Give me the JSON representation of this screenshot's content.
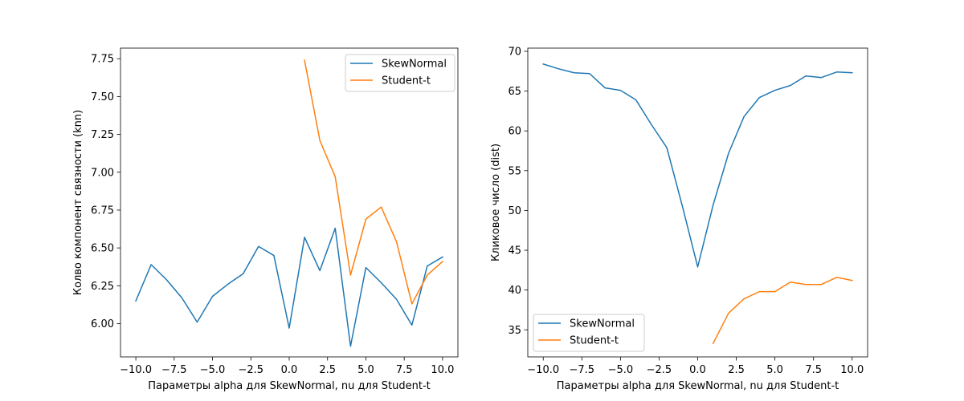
{
  "chart_data": [
    {
      "type": "line",
      "xlabel": "Параметры alpha для SkewNormal, nu для Student-t",
      "ylabel": "Колво компонент связности (knn)",
      "xlim": [
        -11,
        11
      ],
      "ylim": [
        5.78,
        7.82
      ],
      "x_ticks": [
        -10.0,
        -7.5,
        -5.0,
        -2.5,
        0.0,
        2.5,
        5.0,
        7.5,
        10.0
      ],
      "x_tick_labels": [
        "−10.0",
        "−7.5",
        "−5.0",
        "−2.5",
        "0.0",
        "2.5",
        "5.0",
        "7.5",
        "10.0"
      ],
      "y_ticks": [
        6.0,
        6.25,
        6.5,
        6.75,
        7.0,
        7.25,
        7.5,
        7.75
      ],
      "y_tick_labels": [
        "6.00",
        "6.25",
        "6.50",
        "6.75",
        "7.00",
        "7.25",
        "7.50",
        "7.75"
      ],
      "legend_position": "top-right",
      "series": [
        {
          "name": "SkewNormal",
          "color": "#1f77b4",
          "x": [
            -10,
            -9,
            -8,
            -7,
            -6,
            -5,
            -4,
            -3,
            -2,
            -1,
            0,
            1,
            2,
            3,
            4,
            5,
            6,
            7,
            8,
            9,
            10
          ],
          "y": [
            6.15,
            6.39,
            6.29,
            6.17,
            6.01,
            6.18,
            6.26,
            6.33,
            6.51,
            6.45,
            5.97,
            6.57,
            6.35,
            6.63,
            5.85,
            6.37,
            6.27,
            6.16,
            5.99,
            6.38,
            6.44
          ]
        },
        {
          "name": "Student-t",
          "color": "#ff7f0e",
          "x": [
            1,
            2,
            3,
            4,
            5,
            6,
            7,
            8,
            9,
            10
          ],
          "y": [
            7.74,
            7.21,
            6.97,
            6.32,
            6.69,
            6.77,
            6.54,
            6.13,
            6.32,
            6.41
          ]
        }
      ]
    },
    {
      "type": "line",
      "xlabel": "Параметры alpha для SkewNormal, nu для Student-t",
      "ylabel": "Кликовое число (dist)",
      "xlim": [
        -11,
        11
      ],
      "ylim": [
        31.6,
        70.4
      ],
      "x_ticks": [
        -10.0,
        -7.5,
        -5.0,
        -2.5,
        0.0,
        2.5,
        5.0,
        7.5,
        10.0
      ],
      "x_tick_labels": [
        "−10.0",
        "−7.5",
        "−5.0",
        "−2.5",
        "0.0",
        "2.5",
        "5.0",
        "7.5",
        "10.0"
      ],
      "y_ticks": [
        35,
        40,
        45,
        50,
        55,
        60,
        65,
        70
      ],
      "y_tick_labels": [
        "35",
        "40",
        "45",
        "50",
        "55",
        "60",
        "65",
        "70"
      ],
      "legend_position": "bottom-left",
      "series": [
        {
          "name": "SkewNormal",
          "color": "#1f77b4",
          "x": [
            -10,
            -9,
            -8,
            -7,
            -6,
            -5,
            -4,
            -3,
            -2,
            -1,
            0,
            1,
            2,
            3,
            4,
            5,
            6,
            7,
            8,
            9,
            10
          ],
          "y": [
            68.4,
            67.8,
            67.3,
            67.2,
            65.4,
            65.1,
            63.9,
            60.8,
            57.9,
            50.6,
            42.9,
            50.7,
            57.2,
            61.8,
            64.2,
            65.1,
            65.7,
            66.9,
            66.7,
            67.4,
            67.3
          ]
        },
        {
          "name": "Student-t",
          "color": "#ff7f0e",
          "x": [
            1,
            2,
            3,
            4,
            5,
            6,
            7,
            8,
            9,
            10
          ],
          "y": [
            33.3,
            37.1,
            38.9,
            39.8,
            39.8,
            41.0,
            40.7,
            40.7,
            41.6,
            41.2
          ]
        }
      ]
    }
  ]
}
